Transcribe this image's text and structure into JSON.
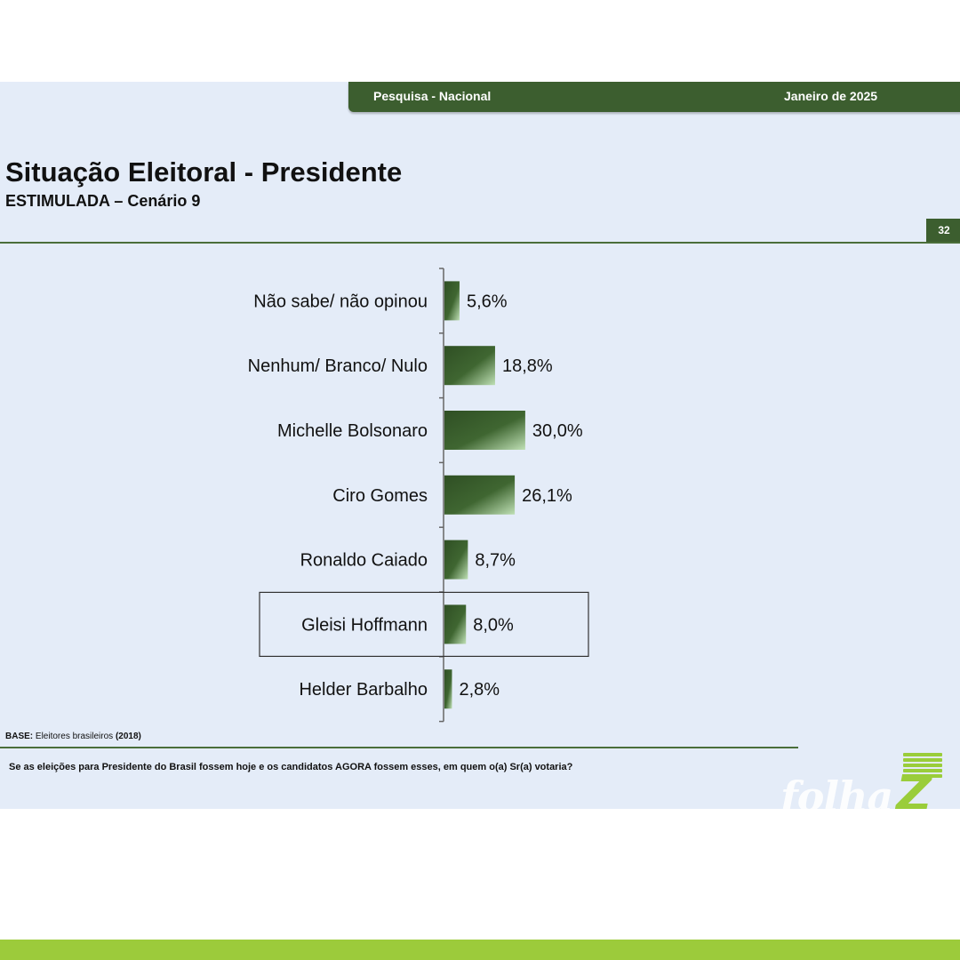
{
  "header": {
    "left": "Pesquisa - Nacional",
    "right": "Janeiro de 2025"
  },
  "page_number": "32",
  "chart_data": {
    "type": "bar",
    "orientation": "horizontal",
    "title": "Situação Eleitoral - Presidente",
    "subtitle": "ESTIMULADA – Cenário 9",
    "categories": [
      "Não sabe/ não opinou",
      "Nenhum/ Branco/ Nulo",
      "Michelle Bolsonaro",
      "Ciro Gomes",
      "Ronaldo Caiado",
      "Gleisi Hoffmann",
      "Helder Barbalho"
    ],
    "values": [
      5.6,
      18.8,
      30.0,
      26.1,
      8.7,
      8.0,
      2.8
    ],
    "value_labels": [
      "5,6%",
      "18,8%",
      "30,0%",
      "26,1%",
      "8,7%",
      "8,0%",
      "2,8%"
    ],
    "highlighted": "Gleisi Hoffmann",
    "xlim": [
      0,
      100
    ],
    "grid": false,
    "bar_color": "#3c5e2f"
  },
  "footer": {
    "base_label": "BASE:",
    "base_text": "Eleitores brasileiros",
    "base_year": "(2018)",
    "question": "Se as eleições para Presidente do Brasil fossem hoje e os candidatos AGORA fossem esses, em quem o(a) Sr(a) votaria?"
  },
  "logo": {
    "word": "folha",
    "letter": "Z"
  }
}
